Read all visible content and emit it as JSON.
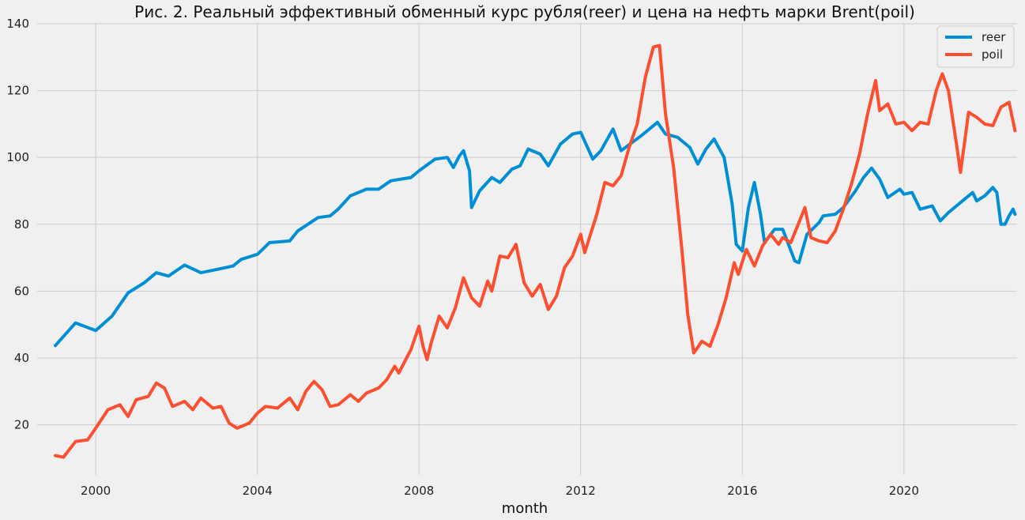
{
  "chart_data": {
    "type": "line",
    "title": "Рис. 2. Реальный эффективный обменный курс рубля(reer) и цена на нефть марки Brent(poil)",
    "xlabel": "month",
    "ylabel": "",
    "xlim": [
      1998.55,
      2022.8
    ],
    "ylim": [
      5,
      140
    ],
    "xticks": [
      2000,
      2004,
      2008,
      2012,
      2016,
      2020
    ],
    "yticks": [
      20,
      40,
      60,
      80,
      100,
      120,
      140
    ],
    "grid": true,
    "legend": "top-right",
    "background": "#f0f0f0",
    "series": [
      {
        "name": "reer",
        "color": "#008fd5",
        "points": [
          [
            1999.0,
            43.7
          ],
          [
            1999.5,
            50.5
          ],
          [
            2000.0,
            48.2
          ],
          [
            2000.4,
            52.5
          ],
          [
            2000.8,
            59.5
          ],
          [
            2001.2,
            62.5
          ],
          [
            2001.5,
            65.5
          ],
          [
            2001.8,
            64.5
          ],
          [
            2002.2,
            67.8
          ],
          [
            2002.6,
            65.5
          ],
          [
            2003.0,
            66.5
          ],
          [
            2003.4,
            67.5
          ],
          [
            2003.6,
            69.5
          ],
          [
            2004.0,
            71.0
          ],
          [
            2004.3,
            74.5
          ],
          [
            2004.8,
            75.0
          ],
          [
            2005.0,
            78.0
          ],
          [
            2005.5,
            82.0
          ],
          [
            2005.8,
            82.5
          ],
          [
            2006.0,
            84.5
          ],
          [
            2006.3,
            88.5
          ],
          [
            2006.7,
            90.5
          ],
          [
            2007.0,
            90.5
          ],
          [
            2007.3,
            93.0
          ],
          [
            2007.8,
            94.0
          ],
          [
            2008.0,
            96.0
          ],
          [
            2008.4,
            99.5
          ],
          [
            2008.7,
            100.0
          ],
          [
            2008.85,
            97.0
          ],
          [
            2009.0,
            100.5
          ],
          [
            2009.1,
            102.0
          ],
          [
            2009.25,
            96.0
          ],
          [
            2009.3,
            85.0
          ],
          [
            2009.5,
            90.0
          ],
          [
            2009.8,
            94.0
          ],
          [
            2010.0,
            92.5
          ],
          [
            2010.3,
            96.5
          ],
          [
            2010.5,
            97.5
          ],
          [
            2010.7,
            102.5
          ],
          [
            2011.0,
            101.0
          ],
          [
            2011.2,
            97.5
          ],
          [
            2011.5,
            104.0
          ],
          [
            2011.8,
            107.0
          ],
          [
            2012.0,
            107.5
          ],
          [
            2012.3,
            99.5
          ],
          [
            2012.5,
            102.0
          ],
          [
            2012.8,
            108.5
          ],
          [
            2013.0,
            102.0
          ],
          [
            2013.5,
            106.5
          ],
          [
            2013.9,
            110.5
          ],
          [
            2014.1,
            107.0
          ],
          [
            2014.4,
            106.0
          ],
          [
            2014.7,
            103.0
          ],
          [
            2014.9,
            98.0
          ],
          [
            2015.1,
            102.5
          ],
          [
            2015.3,
            105.5
          ],
          [
            2015.55,
            100.0
          ],
          [
            2015.75,
            86.0
          ],
          [
            2015.85,
            74.0
          ],
          [
            2016.0,
            72.0
          ],
          [
            2016.15,
            85.0
          ],
          [
            2016.3,
            92.5
          ],
          [
            2016.45,
            83.0
          ],
          [
            2016.55,
            74.5
          ],
          [
            2016.8,
            78.5
          ],
          [
            2017.0,
            78.5
          ],
          [
            2017.3,
            69.0
          ],
          [
            2017.4,
            68.5
          ],
          [
            2017.6,
            77.0
          ],
          [
            2017.9,
            80.5
          ],
          [
            2018.0,
            82.5
          ],
          [
            2018.3,
            83.0
          ],
          [
            2018.5,
            85.0
          ],
          [
            2018.8,
            90.0
          ],
          [
            2019.0,
            94.0
          ],
          [
            2019.2,
            96.8
          ],
          [
            2019.4,
            93.5
          ],
          [
            2019.6,
            88.0
          ],
          [
            2019.9,
            90.5
          ],
          [
            2020.0,
            89.0
          ],
          [
            2020.2,
            89.5
          ],
          [
            2020.4,
            84.5
          ],
          [
            2020.7,
            85.5
          ],
          [
            2020.9,
            81.0
          ],
          [
            2021.1,
            83.5
          ],
          [
            2021.5,
            87.5
          ],
          [
            2021.7,
            89.5
          ],
          [
            2021.8,
            87.0
          ],
          [
            2022.0,
            88.5
          ],
          [
            2022.2,
            91.0
          ],
          [
            2022.3,
            89.5
          ],
          [
            2022.4,
            80.0
          ],
          [
            2022.5,
            80.0
          ],
          [
            2022.6,
            82.5
          ],
          [
            2022.7,
            84.5
          ],
          [
            2022.75,
            83.0
          ]
        ]
      },
      {
        "name": "poil",
        "color": "#fc4f30",
        "points": [
          [
            1999.0,
            10.8
          ],
          [
            1999.2,
            10.3
          ],
          [
            1999.5,
            15.0
          ],
          [
            1999.8,
            15.5
          ],
          [
            2000.0,
            19.0
          ],
          [
            2000.3,
            24.5
          ],
          [
            2000.6,
            26.0
          ],
          [
            2000.8,
            22.5
          ],
          [
            2001.0,
            27.5
          ],
          [
            2001.3,
            28.5
          ],
          [
            2001.5,
            32.5
          ],
          [
            2001.7,
            31.0
          ],
          [
            2001.9,
            25.5
          ],
          [
            2002.2,
            27.0
          ],
          [
            2002.4,
            24.5
          ],
          [
            2002.6,
            28.0
          ],
          [
            2002.9,
            25.0
          ],
          [
            2003.1,
            25.5
          ],
          [
            2003.3,
            20.5
          ],
          [
            2003.5,
            19.0
          ],
          [
            2003.8,
            20.5
          ],
          [
            2004.0,
            23.5
          ],
          [
            2004.2,
            25.5
          ],
          [
            2004.5,
            25.0
          ],
          [
            2004.8,
            28.0
          ],
          [
            2005.0,
            24.5
          ],
          [
            2005.2,
            30.0
          ],
          [
            2005.4,
            33.0
          ],
          [
            2005.6,
            30.5
          ],
          [
            2005.8,
            25.5
          ],
          [
            2006.0,
            26.0
          ],
          [
            2006.3,
            29.0
          ],
          [
            2006.5,
            27.0
          ],
          [
            2006.7,
            29.5
          ],
          [
            2007.0,
            31.0
          ],
          [
            2007.2,
            33.5
          ],
          [
            2007.4,
            37.5
          ],
          [
            2007.5,
            35.5
          ],
          [
            2007.8,
            42.5
          ],
          [
            2008.0,
            49.5
          ],
          [
            2008.1,
            43.5
          ],
          [
            2008.2,
            39.5
          ],
          [
            2008.3,
            44.5
          ],
          [
            2008.5,
            52.5
          ],
          [
            2008.7,
            49.0
          ],
          [
            2008.9,
            55.0
          ],
          [
            2009.1,
            64.0
          ],
          [
            2009.3,
            58.0
          ],
          [
            2009.5,
            55.5
          ],
          [
            2009.7,
            63.0
          ],
          [
            2009.8,
            60.0
          ],
          [
            2010.0,
            70.5
          ],
          [
            2010.2,
            70.0
          ],
          [
            2010.4,
            74.0
          ],
          [
            2010.6,
            62.5
          ],
          [
            2010.8,
            58.5
          ],
          [
            2011.0,
            62.0
          ],
          [
            2011.2,
            54.5
          ],
          [
            2011.4,
            58.5
          ],
          [
            2011.6,
            67.0
          ],
          [
            2011.8,
            70.5
          ],
          [
            2012.0,
            77.0
          ],
          [
            2012.1,
            71.5
          ],
          [
            2012.4,
            83.0
          ],
          [
            2012.6,
            92.5
          ],
          [
            2012.8,
            91.5
          ],
          [
            2013.0,
            94.5
          ],
          [
            2013.2,
            103.0
          ],
          [
            2013.4,
            110.0
          ],
          [
            2013.6,
            124.0
          ],
          [
            2013.8,
            133.0
          ],
          [
            2013.95,
            133.5
          ],
          [
            2014.1,
            113.0
          ],
          [
            2014.3,
            97.0
          ],
          [
            2014.5,
            73.0
          ],
          [
            2014.65,
            53.0
          ],
          [
            2014.8,
            41.5
          ],
          [
            2015.0,
            45.0
          ],
          [
            2015.2,
            43.5
          ],
          [
            2015.4,
            50.0
          ],
          [
            2015.6,
            58.0
          ],
          [
            2015.8,
            68.5
          ],
          [
            2015.9,
            65.0
          ],
          [
            2016.1,
            72.5
          ],
          [
            2016.3,
            67.5
          ],
          [
            2016.5,
            73.5
          ],
          [
            2016.7,
            77.0
          ],
          [
            2016.9,
            74.0
          ],
          [
            2017.0,
            76.0
          ],
          [
            2017.2,
            74.5
          ],
          [
            2017.4,
            80.5
          ],
          [
            2017.55,
            85.0
          ],
          [
            2017.7,
            76.0
          ],
          [
            2017.9,
            75.0
          ],
          [
            2018.1,
            74.5
          ],
          [
            2018.3,
            78.0
          ],
          [
            2018.5,
            84.5
          ],
          [
            2018.7,
            92.0
          ],
          [
            2018.9,
            101.0
          ],
          [
            2019.1,
            113.0
          ],
          [
            2019.3,
            123.0
          ],
          [
            2019.4,
            114.0
          ],
          [
            2019.6,
            116.0
          ],
          [
            2019.8,
            110.0
          ],
          [
            2020.0,
            110.5
          ],
          [
            2020.2,
            108.0
          ],
          [
            2020.4,
            110.5
          ],
          [
            2020.6,
            110.0
          ],
          [
            2020.8,
            120.0
          ],
          [
            2020.95,
            125.0
          ],
          [
            2021.1,
            120.0
          ],
          [
            2021.3,
            104.0
          ],
          [
            2021.4,
            95.5
          ],
          [
            2021.6,
            113.5
          ],
          [
            2021.8,
            112.0
          ],
          [
            2022.0,
            110.0
          ],
          [
            2022.2,
            109.5
          ],
          [
            2022.4,
            115.0
          ],
          [
            2022.6,
            116.5
          ],
          [
            2022.75,
            108.0
          ]
        ]
      }
    ]
  }
}
